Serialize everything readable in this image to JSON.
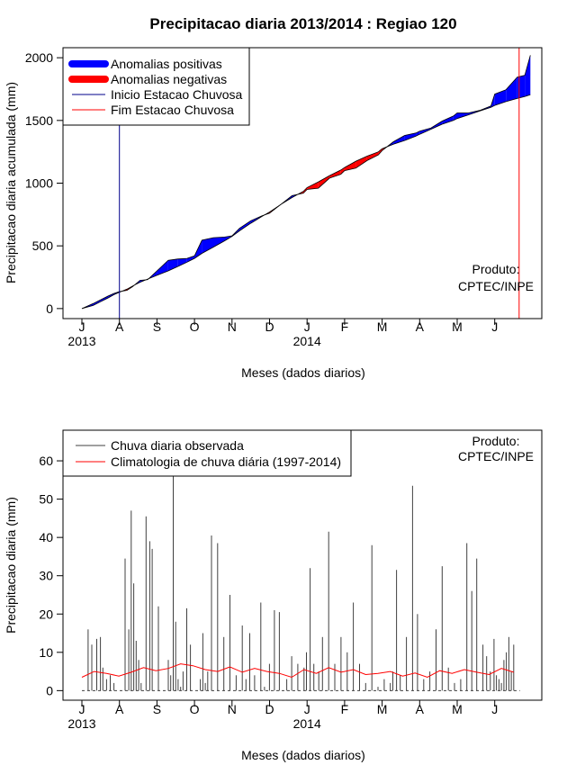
{
  "chart_data": [
    {
      "type": "area",
      "title": "Precipitacao diaria 2013/2014 : Regiao 120",
      "xlabel": "Meses (dados diarios)",
      "ylabel": "Precipitacao diaria acumulada (mm)",
      "ylim": [
        -80,
        2080
      ],
      "yticks": [
        0,
        500,
        1000,
        1500,
        2000
      ],
      "x_tick_labels": [
        "J",
        "A",
        "S",
        "O",
        "N",
        "D",
        "J",
        "F",
        "M",
        "A",
        "M",
        "J"
      ],
      "year_labels": [
        {
          "label": "2013",
          "month_index": 0
        },
        {
          "label": "2014",
          "month_index": 6
        }
      ],
      "legend_position": "top-left",
      "credit_lines": [
        "Produto:",
        "CPTEC/INPE"
      ],
      "series": [
        {
          "name": "Anomalias positivas",
          "color": "#0000ff"
        },
        {
          "name": "Anomalias negativas",
          "color": "#ff0000"
        },
        {
          "name": "Inicio Estacao Chuvosa",
          "color": "#00008b",
          "month": 1.0
        },
        {
          "name": "Fim Estacao Chuvosa",
          "color": "#ff0000",
          "month": 11.65
        }
      ],
      "months": [
        0,
        0.3,
        0.5,
        0.7,
        0.85,
        1.0,
        1.2,
        1.35,
        1.55,
        1.75,
        2.0,
        2.3,
        2.55,
        2.8,
        3.0,
        3.2,
        3.5,
        3.8,
        4.0,
        4.2,
        4.5,
        4.8,
        5.0,
        5.3,
        5.6,
        5.9,
        6.0,
        6.3,
        6.6,
        6.9,
        7.0,
        7.3,
        7.6,
        7.9,
        8.0,
        8.3,
        8.6,
        8.9,
        9.0,
        9.3,
        9.6,
        9.9,
        10.0,
        10.3,
        10.6,
        10.9,
        11.0,
        11.3,
        11.6,
        11.8,
        11.95
      ],
      "observed": [
        0,
        40,
        70,
        100,
        120,
        135,
        145,
        175,
        225,
        230,
        300,
        385,
        395,
        400,
        420,
        545,
        565,
        570,
        580,
        640,
        700,
        740,
        760,
        830,
        900,
        920,
        950,
        960,
        1040,
        1070,
        1100,
        1120,
        1180,
        1225,
        1260,
        1330,
        1380,
        1400,
        1415,
        1440,
        1495,
        1535,
        1560,
        1560,
        1580,
        1615,
        1710,
        1745,
        1845,
        1860,
        2020
      ],
      "climatology": [
        0,
        25,
        55,
        85,
        110,
        130,
        155,
        180,
        210,
        235,
        265,
        300,
        335,
        370,
        400,
        440,
        490,
        540,
        575,
        620,
        680,
        735,
        770,
        830,
        885,
        935,
        965,
        1010,
        1060,
        1105,
        1125,
        1175,
        1215,
        1250,
        1275,
        1310,
        1340,
        1375,
        1390,
        1430,
        1470,
        1500,
        1515,
        1545,
        1575,
        1605,
        1620,
        1650,
        1675,
        1690,
        1705
      ]
    },
    {
      "type": "bar",
      "xlabel": "Meses (dados diarios)",
      "ylabel": "Precipitacao diaria (mm)",
      "ylim": [
        -2.5,
        68
      ],
      "yticks": [
        0,
        10,
        20,
        30,
        40,
        50,
        60
      ],
      "x_tick_labels": [
        "J",
        "A",
        "S",
        "O",
        "N",
        "D",
        "J",
        "F",
        "M",
        "A",
        "M",
        "J"
      ],
      "year_labels": [
        {
          "label": "2013",
          "month_index": 0
        },
        {
          "label": "2014",
          "month_index": 6
        }
      ],
      "legend_position": "top-left",
      "credit_lines": [
        "Produto:",
        "CPTEC/INPE"
      ],
      "series": [
        {
          "name": "Chuva diaria observada",
          "color": "#404040"
        },
        {
          "name": "Climatologia de chuva diária (1997-2014)",
          "color": "#ff0000"
        }
      ],
      "daily_day": [
        5,
        8,
        12,
        15,
        17,
        20,
        23,
        26,
        35,
        38,
        40,
        42,
        44,
        46,
        48,
        52,
        55,
        57,
        62,
        70,
        72,
        74,
        76,
        78,
        80,
        82,
        85,
        88,
        96,
        98,
        100,
        102,
        105,
        110,
        115,
        120,
        125,
        130,
        133,
        136,
        140,
        145,
        148,
        152,
        156,
        160,
        166,
        170,
        175,
        180,
        182,
        185,
        188,
        192,
        195,
        200,
        205,
        210,
        215,
        220,
        225,
        230,
        235,
        240,
        245,
        250,
        252,
        255,
        258,
        263,
        268,
        272,
        277,
        282,
        287,
        292,
        297,
        302,
        307,
        312,
        316,
        320,
        325,
        328,
        331,
        334,
        336,
        338,
        340,
        342,
        344,
        346,
        348,
        350
      ],
      "daily_mm": [
        16,
        12,
        13.5,
        14,
        6,
        3,
        4,
        2,
        34.5,
        16,
        47,
        28,
        13,
        8,
        2,
        45.5,
        39,
        37,
        22,
        8,
        4,
        56,
        18,
        3,
        1,
        5,
        21.5,
        12,
        3,
        15,
        2,
        5,
        40.5,
        38.5,
        14,
        25,
        4,
        17,
        3,
        15,
        4,
        23,
        1,
        7,
        21,
        20.5,
        3,
        9,
        7,
        6,
        10,
        32,
        7,
        5,
        14,
        41.5,
        7,
        14,
        10,
        23,
        7,
        2,
        38,
        1,
        3,
        2,
        5,
        31.5,
        4,
        14,
        53.5,
        20,
        3,
        5,
        16,
        32.5,
        6,
        2,
        3,
        38.5,
        26,
        34.5,
        12,
        9,
        5,
        13.5,
        4,
        3,
        2,
        8,
        10,
        14,
        5,
        12
      ],
      "clim_day": [
        0,
        10,
        20,
        30,
        40,
        50,
        60,
        70,
        80,
        90,
        100,
        110,
        120,
        130,
        140,
        150,
        160,
        170,
        180,
        190,
        200,
        210,
        220,
        230,
        240,
        250,
        260,
        270,
        280,
        290,
        300,
        310,
        320,
        330,
        340,
        350
      ],
      "clim_mm": [
        3.5,
        5,
        4.5,
        3.8,
        4.8,
        6,
        5.2,
        5.8,
        7,
        6.5,
        5.5,
        5,
        6.2,
        4.8,
        5.8,
        5,
        4.5,
        3.5,
        5.5,
        4.5,
        6,
        4.8,
        5.5,
        4.2,
        4.5,
        5,
        3.8,
        4.6,
        3.5,
        5.2,
        4.5,
        5.5,
        4.8,
        4.2,
        5.8,
        4.8
      ]
    }
  ]
}
